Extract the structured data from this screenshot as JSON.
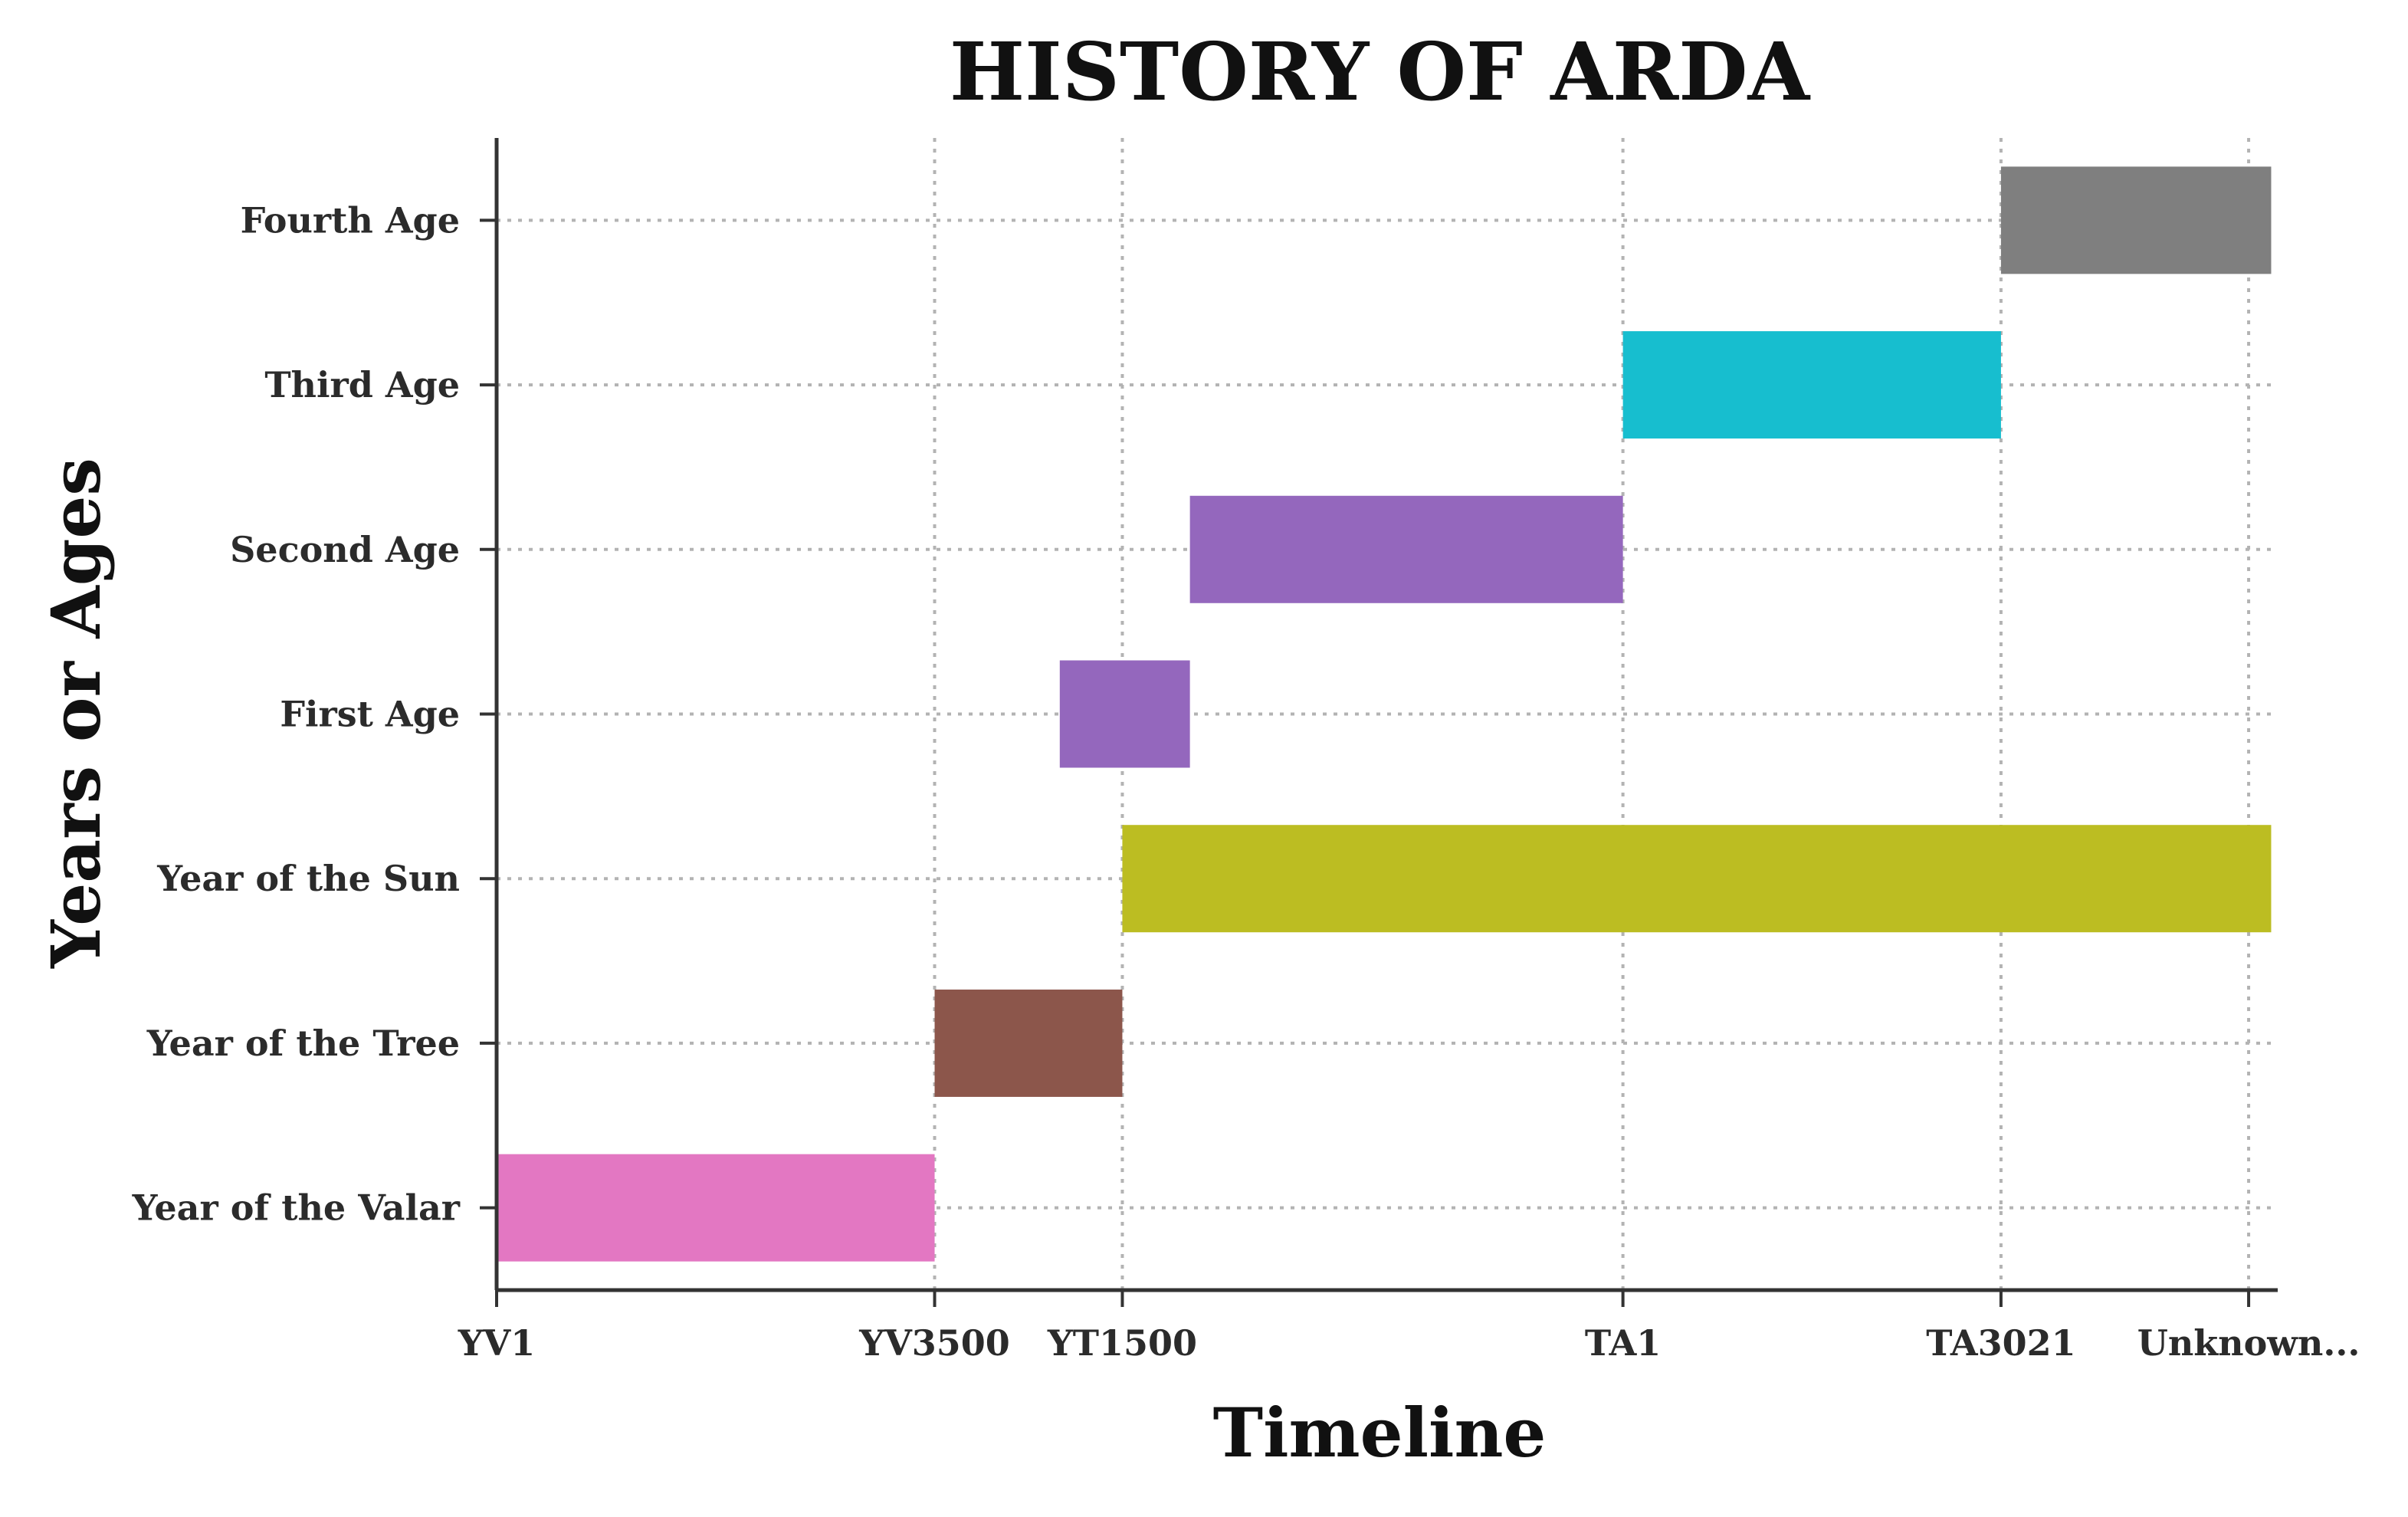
{
  "chart_data": {
    "type": "bar",
    "orientation": "horizontal-gantt",
    "title": "HISTORY OF ARDA",
    "xlabel": "Timeline",
    "ylabel": "Years or Ages",
    "grid": true,
    "x_ticks": [
      {
        "label": "YV1",
        "pos": 0
      },
      {
        "label": "YV3500",
        "pos": 3500
      },
      {
        "label": "YT1500",
        "pos": 5000
      },
      {
        "label": "TA1",
        "pos": 9000
      },
      {
        "label": "TA3021",
        "pos": 12021
      },
      {
        "label": "Unknown...",
        "pos": 14000
      }
    ],
    "xlim": [
      0,
      14220
    ],
    "categories": [
      "Year of the Valar",
      "Year of the Tree",
      "Year of the Sun",
      "First Age",
      "Second Age",
      "Third Age",
      "Fourth Age"
    ],
    "bars": [
      {
        "name": "Year of the Valar",
        "start": 0,
        "end": 3500,
        "color": "#e377c2"
      },
      {
        "name": "Year of the Tree",
        "start": 3500,
        "end": 5000,
        "color": "#8c564b"
      },
      {
        "name": "Year of the Sun",
        "start": 5000,
        "end": 14180,
        "color": "#bcbd22"
      },
      {
        "name": "First Age",
        "start": 4500,
        "end": 5540,
        "color": "#9467bd"
      },
      {
        "name": "Second Age",
        "start": 5540,
        "end": 9000,
        "color": "#9467bd"
      },
      {
        "name": "Third Age",
        "start": 9000,
        "end": 12021,
        "color": "#17becf"
      },
      {
        "name": "Fourth Age",
        "start": 12021,
        "end": 14180,
        "color": "#7f7f7f"
      }
    ]
  }
}
